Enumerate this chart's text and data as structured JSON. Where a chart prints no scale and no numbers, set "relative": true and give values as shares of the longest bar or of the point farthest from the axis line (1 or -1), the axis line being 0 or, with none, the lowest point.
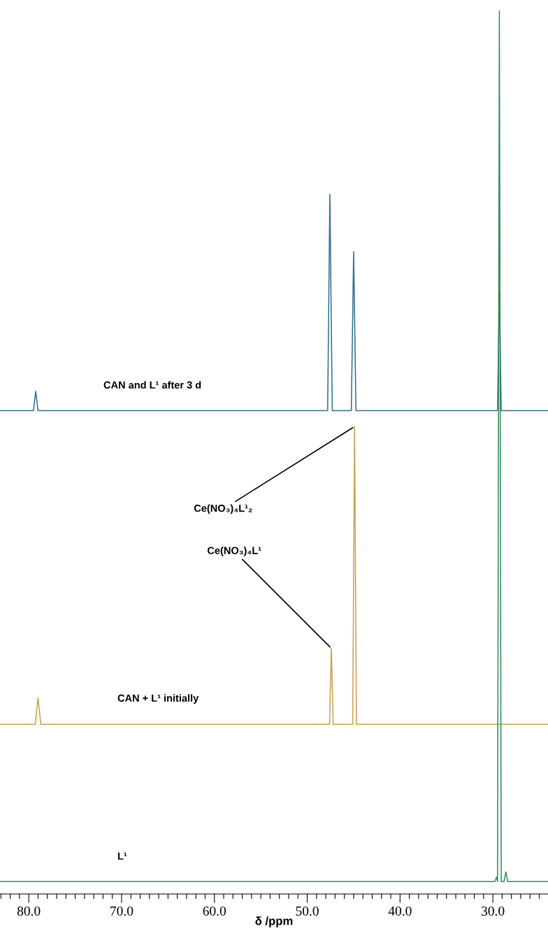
{
  "chart_data": {
    "type": "line",
    "relative": true,
    "xlim": [
      83.1,
      24.06
    ],
    "xlabel": "δ /ppm",
    "xticks": [
      {
        "value": 80,
        "label": "80.0"
      },
      {
        "value": 70,
        "label": "70.0"
      },
      {
        "value": 60,
        "label": "60.0"
      },
      {
        "value": 50,
        "label": "50.0"
      },
      {
        "value": 40,
        "label": "40.0"
      },
      {
        "value": 30,
        "label": "30.0"
      }
    ],
    "series": [
      {
        "name": "CAN and L¹ after 3 d",
        "color": "#2e6e8e",
        "x": [
          83.1,
          79.5,
          79.25,
          79.0,
          47.8,
          47.56,
          47.3,
          45.25,
          45.0,
          44.75,
          29.5,
          29.3,
          29.1,
          24.06
        ],
        "values": [
          0.547,
          0.547,
          0.569,
          0.547,
          0.547,
          0.792,
          0.547,
          0.547,
          0.727,
          0.547,
          0.547,
          0.681,
          0.547,
          0.547
        ]
      },
      {
        "name": "CAN + L¹ initially",
        "color": "#c8a050",
        "x": [
          83.1,
          79.3,
          79.0,
          78.7,
          47.6,
          47.4,
          47.2,
          45.1,
          44.9,
          44.7,
          24.06
        ],
        "values": [
          0.192,
          0.192,
          0.222,
          0.192,
          0.192,
          0.278,
          0.192,
          0.192,
          0.529,
          0.192,
          0.192
        ]
      },
      {
        "name": "L¹",
        "color": "#2e8b57",
        "x": [
          83.1,
          29.8,
          29.6,
          29.5,
          29.3,
          29.1,
          28.8,
          28.6,
          28.4,
          24.06
        ],
        "values": [
          0.014,
          0.014,
          0.019,
          0.014,
          1,
          0.014,
          0.014,
          0.025,
          0.014,
          0.014
        ]
      }
    ],
    "annotations": [
      {
        "text": "Ce(NO₃)₄L¹₂",
        "x": 44.9,
        "y": 0.529
      },
      {
        "text": "Ce(NO₃)₄L¹",
        "x": 47.4,
        "y": 0.278
      }
    ]
  }
}
